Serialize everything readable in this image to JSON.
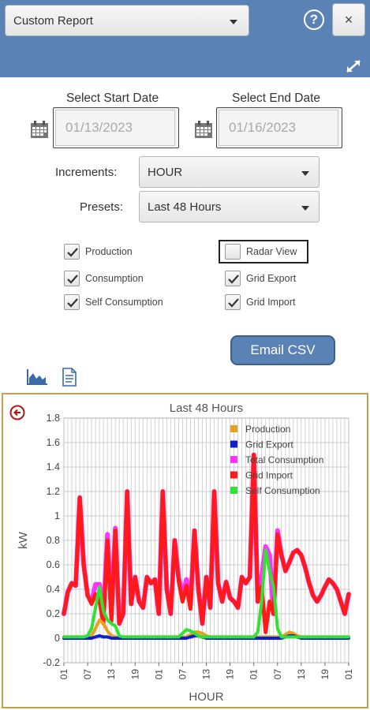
{
  "header": {
    "report_type": "Custom Report",
    "help_icon": "question-circle-icon",
    "close_label": "×",
    "expand_icon": "expand-icon"
  },
  "dates": {
    "start_label": "Select Start Date",
    "end_label": "Select End Date",
    "start_value": "01/13/2023",
    "end_value": "01/16/2023"
  },
  "increments": {
    "label": "Increments:",
    "value": "HOUR"
  },
  "presets": {
    "label": "Presets:",
    "value": "Last 48 Hours"
  },
  "options": {
    "production": {
      "label": "Production",
      "checked": true
    },
    "radar": {
      "label": "Radar View",
      "checked": false
    },
    "consumption": {
      "label": "Consumption",
      "checked": true
    },
    "grid_export": {
      "label": "Grid Export",
      "checked": true
    },
    "self_consumption": {
      "label": "Self Consumption",
      "checked": true
    },
    "grid_import": {
      "label": "Grid Import",
      "checked": true
    }
  },
  "email_csv_label": "Email CSV",
  "colors": {
    "header": "#5a82b4",
    "accent_border": "#c4a14c"
  },
  "chart_data": {
    "type": "line",
    "title": "Last 48 Hours",
    "xlabel": "HOUR",
    "ylabel": "kW",
    "ylim": [
      -0.2,
      1.8
    ],
    "yticks": [
      "-0.2",
      "0",
      "0.2",
      "0.4",
      "0.6",
      "0.8",
      "1",
      "1.2",
      "1.4",
      "1.6",
      "1.8"
    ],
    "xticks": [
      "01",
      "07",
      "13",
      "19",
      "01",
      "07",
      "13",
      "19",
      "01",
      "07",
      "13",
      "19",
      "01"
    ],
    "legend_position": "top-right",
    "grid": true,
    "series": [
      {
        "name": "Production",
        "color": "#e8a020",
        "values": [
          0.01,
          0.01,
          0.01,
          0.01,
          0.01,
          0.01,
          0.01,
          0.02,
          0.08,
          0.15,
          0.12,
          0.06,
          0.02,
          0.01,
          0.01,
          0.01,
          0.01,
          0.01,
          0.01,
          0.01,
          0.01,
          0.01,
          0.01,
          0.01,
          0.01,
          0.01,
          0.01,
          0.01,
          0.01,
          0.01,
          0.01,
          0.01,
          0.03,
          0.05,
          0.05,
          0.04,
          0.02,
          0.01,
          0.01,
          0.01,
          0.01,
          0.01,
          0.01,
          0.01,
          0.01,
          0.01,
          0.01,
          0.01,
          0.01,
          0.01,
          0.01,
          0.01,
          0.01,
          0.01,
          0.01,
          0.01,
          0.03,
          0.05,
          0.04,
          0.02,
          0.01,
          0.01,
          0.01,
          0.01,
          0.01,
          0.01,
          0.01,
          0.01,
          0.01,
          0.01,
          0.01,
          0.01,
          0.01
        ]
      },
      {
        "name": "Grid Export",
        "color": "#1020c8",
        "values": [
          0,
          0,
          0,
          0,
          0,
          0,
          0,
          0,
          0.01,
          0.02,
          0.01,
          0.01,
          0,
          0,
          0,
          0,
          0,
          0,
          0,
          0,
          0,
          0,
          0,
          0,
          0,
          0,
          0,
          0,
          0,
          0,
          0,
          0,
          0.01,
          0.02,
          0.02,
          0.01,
          0,
          0,
          0,
          0,
          0,
          0,
          0,
          0,
          0,
          0,
          0,
          0,
          0,
          0,
          0,
          0,
          0,
          0,
          0,
          0,
          0.01,
          0.02,
          0.02,
          0.01,
          0,
          0,
          0,
          0,
          0,
          0,
          0,
          0,
          0,
          0,
          0,
          0,
          0
        ]
      },
      {
        "name": "Total Consumption",
        "color": "#ff33ff",
        "values": [
          0.2,
          0.38,
          0.45,
          0.43,
          1.15,
          0.6,
          0.35,
          0.3,
          0.44,
          0.44,
          0.2,
          0.85,
          0.2,
          0.9,
          0.12,
          0.2,
          1.2,
          0.28,
          0.5,
          0.3,
          0.25,
          0.5,
          0.45,
          0.48,
          0.2,
          1.2,
          0.4,
          0.2,
          0.8,
          0.5,
          0.35,
          0.48,
          0.27,
          0.88,
          0.4,
          0.12,
          0.5,
          0.25,
          1.2,
          0.45,
          0.3,
          0.46,
          0.33,
          0.3,
          0.25,
          0.5,
          0.45,
          0.5,
          1.5,
          0.3,
          0.5,
          0.75,
          0.68,
          0.2,
          0.88,
          0.68,
          0.55,
          0.62,
          0.7,
          0.72,
          0.68,
          0.58,
          0.45,
          0.35,
          0.3,
          0.35,
          0.42,
          0.48,
          0.45,
          0.4,
          0.3,
          0.2,
          0.36
        ]
      },
      {
        "name": "Grid Import",
        "color": "#ff1a1a",
        "values": [
          0.2,
          0.38,
          0.45,
          0.43,
          1.15,
          0.6,
          0.35,
          0.28,
          0.36,
          0.3,
          0.12,
          0.8,
          0.14,
          0.88,
          0.12,
          0.2,
          1.2,
          0.28,
          0.5,
          0.3,
          0.25,
          0.5,
          0.45,
          0.48,
          0.2,
          1.2,
          0.4,
          0.2,
          0.8,
          0.47,
          0.3,
          0.43,
          0.24,
          0.88,
          0.4,
          0.12,
          0.5,
          0.25,
          1.2,
          0.45,
          0.3,
          0.46,
          0.33,
          0.3,
          0.25,
          0.5,
          0.45,
          0.5,
          1.5,
          0.3,
          0.42,
          0.05,
          0.3,
          0.2,
          0.85,
          0.68,
          0.55,
          0.62,
          0.7,
          0.72,
          0.68,
          0.58,
          0.45,
          0.35,
          0.3,
          0.35,
          0.42,
          0.48,
          0.45,
          0.4,
          0.3,
          0.2,
          0.36
        ]
      },
      {
        "name": "Self Consumption",
        "color": "#33e033",
        "values": [
          0.01,
          0.01,
          0.01,
          0.01,
          0.01,
          0.01,
          0.02,
          0.08,
          0.25,
          0.42,
          0.22,
          0.15,
          0.12,
          0.1,
          0.02,
          0.01,
          0.01,
          0.01,
          0.01,
          0.01,
          0.01,
          0.01,
          0.01,
          0.01,
          0.01,
          0.01,
          0.01,
          0.01,
          0.01,
          0.01,
          0.04,
          0.07,
          0.06,
          0.04,
          0.02,
          0.01,
          0.01,
          0.01,
          0.01,
          0.01,
          0.01,
          0.01,
          0.01,
          0.01,
          0.01,
          0.01,
          0.01,
          0.01,
          0.01,
          0.05,
          0.3,
          0.72,
          0.55,
          0.42,
          0.08,
          0.01,
          0.01,
          0.01,
          0.01,
          0.01,
          0.01,
          0.01,
          0.01,
          0.01,
          0.01,
          0.01,
          0.01,
          0.01,
          0.01,
          0.01,
          0.01,
          0.01,
          0.01
        ]
      }
    ]
  }
}
